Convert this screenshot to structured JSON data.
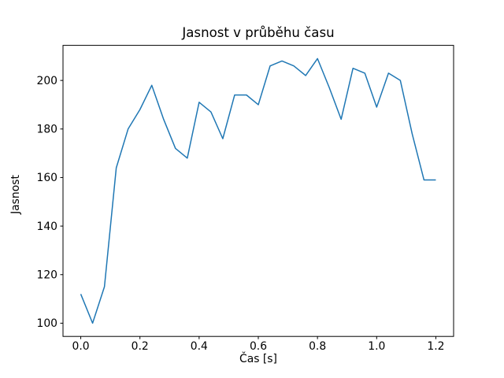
{
  "chart_data": {
    "type": "line",
    "title": "Jasnost v průběhu času",
    "xlabel": "Čas [s]",
    "ylabel": "Jasnost",
    "x": [
      0.0,
      0.04,
      0.08,
      0.12,
      0.16,
      0.2,
      0.24,
      0.28,
      0.32,
      0.36,
      0.4,
      0.44,
      0.48,
      0.52,
      0.56,
      0.6,
      0.64,
      0.68,
      0.72,
      0.76,
      0.8,
      0.84,
      0.88,
      0.92,
      0.96,
      1.0,
      1.04,
      1.08,
      1.12,
      1.16,
      1.2
    ],
    "series": [
      {
        "name": "Jasnost",
        "values": [
          112,
          100,
          115,
          164,
          180,
          188,
          198,
          184,
          172,
          168,
          191,
          187,
          176,
          194,
          194,
          190,
          206,
          208,
          206,
          202,
          209,
          197,
          184,
          205,
          203,
          189,
          203,
          200,
          178,
          159,
          159
        ]
      }
    ],
    "xlim": [
      -0.06,
      1.26
    ],
    "ylim": [
      94.55,
      214.45
    ],
    "xticks": {
      "values": [
        0.0,
        0.2,
        0.4,
        0.6,
        0.8,
        1.0,
        1.2
      ],
      "labels": [
        "0.0",
        "0.2",
        "0.4",
        "0.6",
        "0.8",
        "1.0",
        "1.2"
      ]
    },
    "yticks": {
      "values": [
        100,
        120,
        140,
        160,
        180,
        200
      ],
      "labels": [
        "100",
        "120",
        "140",
        "160",
        "180",
        "200"
      ]
    },
    "grid": false,
    "legend": "none",
    "line_color": "#1f77b4",
    "spine_color": "#000000",
    "background": "#ffffff"
  }
}
